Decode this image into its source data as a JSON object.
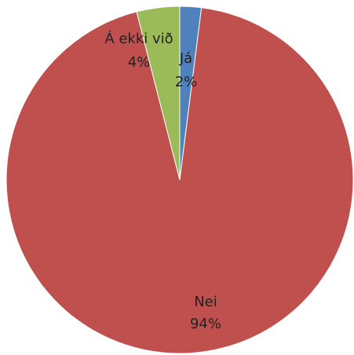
{
  "chart_data": {
    "type": "pie",
    "categories": [
      "Já",
      "Nei",
      "Á ekki við"
    ],
    "values": [
      2,
      94,
      4
    ],
    "value_labels": [
      "2%",
      "94%",
      "4%"
    ],
    "colors": [
      "#4f81bd",
      "#c0504d",
      "#9bbb59"
    ]
  }
}
